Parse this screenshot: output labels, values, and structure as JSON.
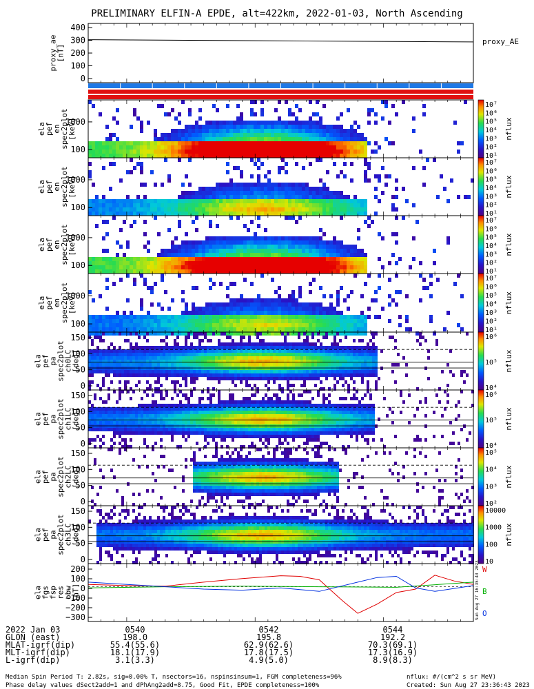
{
  "title": "PRELIMINARY ELFIN-A EPDE, alt=422km, 2022-01-03, North Ascending",
  "colors": {
    "w": "#e00000",
    "b": "#00b000",
    "o": "#0030e0",
    "bar_blue": "#1e78e6",
    "bar_red": "#e01010",
    "bar_black": "#000000"
  },
  "panels": [
    {
      "ylabel": [
        "proxy_ae",
        "[nT]"
      ],
      "ticks": [
        "400",
        "300",
        "200",
        "100",
        "0"
      ],
      "side_label": "proxy_AE"
    },
    {
      "ylabel": [
        "ela",
        "pef",
        "en",
        "spec2plot",
        "[keV]"
      ],
      "ticks": [
        "1000",
        "100"
      ],
      "cb_ticks": [
        "10⁷",
        "10⁶",
        "10⁵",
        "10⁴",
        "10³",
        "10²",
        "10¹"
      ],
      "cb_label": "nflux"
    },
    {
      "ylabel": [
        "ela",
        "pef",
        "en",
        "spec2plot",
        "[keV]"
      ],
      "ticks": [
        "1000",
        "100"
      ],
      "cb_ticks": [
        "10⁷",
        "10⁶",
        "10⁵",
        "10⁴",
        "10³",
        "10²",
        "10¹"
      ],
      "cb_label": "nflux"
    },
    {
      "ylabel": [
        "ela",
        "pef",
        "en",
        "spec2plot",
        "[keV]"
      ],
      "ticks": [
        "1000",
        "100"
      ],
      "cb_ticks": [
        "10⁷",
        "10⁶",
        "10⁵",
        "10⁴",
        "10³",
        "10²",
        "10¹"
      ],
      "cb_label": "nflux"
    },
    {
      "ylabel": [
        "ela",
        "pef",
        "en",
        "spec2plot",
        "[keV]"
      ],
      "ticks": [
        "1000",
        "100"
      ],
      "cb_ticks": [
        "10⁷",
        "10⁶",
        "10⁵",
        "10⁴",
        "10³",
        "10²",
        "10¹"
      ],
      "cb_label": "nflux"
    },
    {
      "ylabel": [
        "ela",
        "pef",
        "pa",
        "spec2plot",
        "ch0LC",
        "[deg]"
      ],
      "ticks": [
        "150",
        "100",
        "50",
        "0"
      ],
      "cb_ticks": [
        "10⁶",
        "10⁵",
        "10⁴"
      ],
      "cb_label": "nflux"
    },
    {
      "ylabel": [
        "ela",
        "pef",
        "pa",
        "spec2plot",
        "ch1LC",
        "[deg]"
      ],
      "ticks": [
        "150",
        "100",
        "50",
        "0"
      ],
      "cb_ticks": [
        "10⁶",
        "10⁵",
        "10⁴"
      ],
      "cb_label": "nflux"
    },
    {
      "ylabel": [
        "ela",
        "pef",
        "pa",
        "spec2plot",
        "ch2LC",
        "[deg]"
      ],
      "ticks": [
        "150",
        "100",
        "50",
        "0"
      ],
      "cb_ticks": [
        "10⁵",
        "10⁴",
        "10³",
        "10²"
      ],
      "cb_label": "nflux"
    },
    {
      "ylabel": [
        "ela",
        "pef",
        "pa",
        "spec2plot",
        "ch3LC",
        "[deg]"
      ],
      "ticks": [
        "150",
        "100",
        "50",
        "0"
      ],
      "cb_ticks": [
        "10000",
        "1000",
        "100",
        "10"
      ],
      "cb_label": "nflux"
    },
    {
      "ylabel": [
        "ela",
        "fgs",
        "fsp",
        "res",
        "obw",
        "[nT]"
      ],
      "ticks": [
        "200",
        "100",
        "0",
        "−100",
        "−200",
        "−300"
      ],
      "legend": [
        "W",
        "B",
        "O"
      ]
    }
  ],
  "chart_data": {
    "type": "line",
    "proxy_ae": {
      "x": [
        "0538.5",
        "0546"
      ],
      "y": [
        290,
        275
      ],
      "ylim": [
        0,
        400
      ]
    },
    "fgs_residual": {
      "ylim": [
        -300,
        200
      ],
      "series": [
        {
          "name": "W",
          "x": [
            0,
            0.1,
            0.2,
            0.3,
            0.4,
            0.5,
            0.55,
            0.6,
            0.66,
            0.7,
            0.75,
            0.8,
            0.85,
            0.9,
            0.95,
            1
          ],
          "values": [
            20,
            10,
            5,
            40,
            70,
            95,
            90,
            60,
            -120,
            -230,
            -150,
            -50,
            -20,
            100,
            50,
            20
          ]
        },
        {
          "name": "B",
          "x": [
            0,
            0.2,
            0.4,
            0.6,
            0.8,
            1
          ],
          "values": [
            -10,
            0,
            5,
            0,
            -5,
            40
          ]
        },
        {
          "name": "O",
          "x": [
            0,
            0.15,
            0.3,
            0.4,
            0.5,
            0.6,
            0.7,
            0.75,
            0.8,
            0.85,
            0.9,
            1
          ],
          "values": [
            40,
            10,
            -20,
            -30,
            -10,
            -40,
            40,
            80,
            90,
            -10,
            -40,
            10
          ]
        }
      ]
    }
  },
  "time_axis": {
    "label_rows": [
      "2022 Jan 03",
      "GLON (east)",
      "MLAT-igrf(dip)",
      "MLT-igrf(dip)",
      "L-igrf(dip)"
    ],
    "columns": [
      {
        "time": "0540",
        "vals": [
          "198.0",
          "55.4(55.6)",
          "18.1(17.9)",
          "3.1(3.3)"
        ]
      },
      {
        "time": "0542",
        "vals": [
          "195.8",
          "62.9(62.6)",
          "17.8(17.5)",
          "4.9(5.0)"
        ]
      },
      {
        "time": "0544",
        "vals": [
          "192.2",
          "70.3(69.1)",
          "17.3(16.9)",
          "8.9(8.3)"
        ]
      }
    ]
  },
  "footer": {
    "line1": "Median Spin Period T: 2.82s, sig=0.00% T, nsectors=16, nspinsinsum=1, FGM completeness=96%",
    "line2": "Phase delay values dSect2add=1 and dPhAng2add=8.75, Good Fit, EPDE completeness=100%",
    "units": "nflux: #/(cm^2 s sr MeV)",
    "created": "Created: Sun Aug 27 23:36:43 2023",
    "side_stamp": "Sun Aug 27 16:35:43 2023"
  }
}
